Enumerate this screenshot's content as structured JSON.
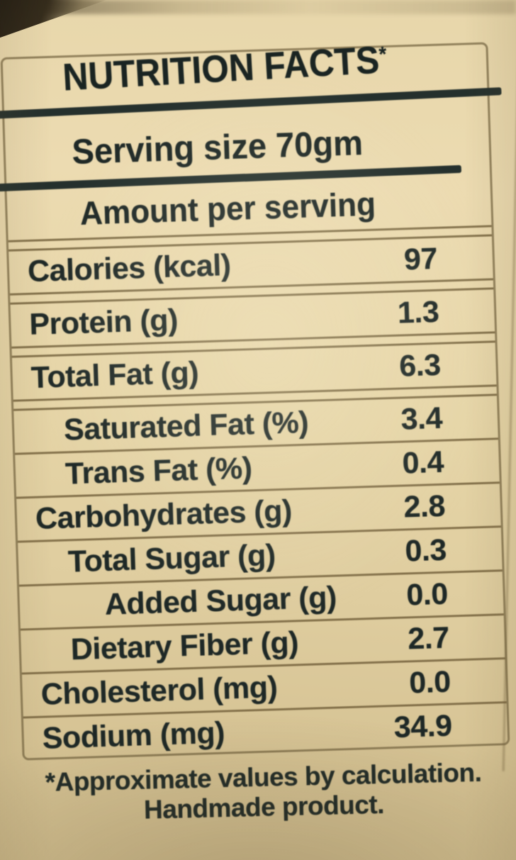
{
  "label": {
    "title": "NUTRITION FACTS",
    "title_asterisk": "*",
    "serving_size": "Serving size 70gm",
    "amount_heading": "Amount per serving",
    "rows": [
      {
        "name": "Calories (kcal)",
        "value": "97",
        "indent": 0
      },
      {
        "name": "Protein (g)",
        "value": "1.3",
        "indent": 0
      },
      {
        "name": "Total Fat (g)",
        "value": "6.3",
        "indent": 0
      },
      {
        "name": "Saturated Fat (%)",
        "value": "3.4",
        "indent": 1
      },
      {
        "name": "Trans Fat (%)",
        "value": "0.4",
        "indent": 1
      },
      {
        "name": "Carbohydrates (g)",
        "value": "2.8",
        "indent": 0
      },
      {
        "name": "Total Sugar (g)",
        "value": "0.3",
        "indent": 1
      },
      {
        "name": "Added Sugar (g)",
        "value": "0.0",
        "indent": 2
      },
      {
        "name": "Dietary Fiber (g)",
        "value": "2.7",
        "indent": 1
      },
      {
        "name": "Cholesterol (mg)",
        "value": "0.0",
        "indent": 0
      },
      {
        "name": "Sodium (mg)",
        "value": "34.9",
        "indent": 0
      }
    ],
    "footnote_line1": "*Approximate values by calculation.",
    "footnote_line2": "Handmade product."
  },
  "colors": {
    "background": "#e6d5a8",
    "ink": "#1e2826",
    "rule": "#25302d",
    "hairline": "rgba(116,98,60,0.85)"
  }
}
